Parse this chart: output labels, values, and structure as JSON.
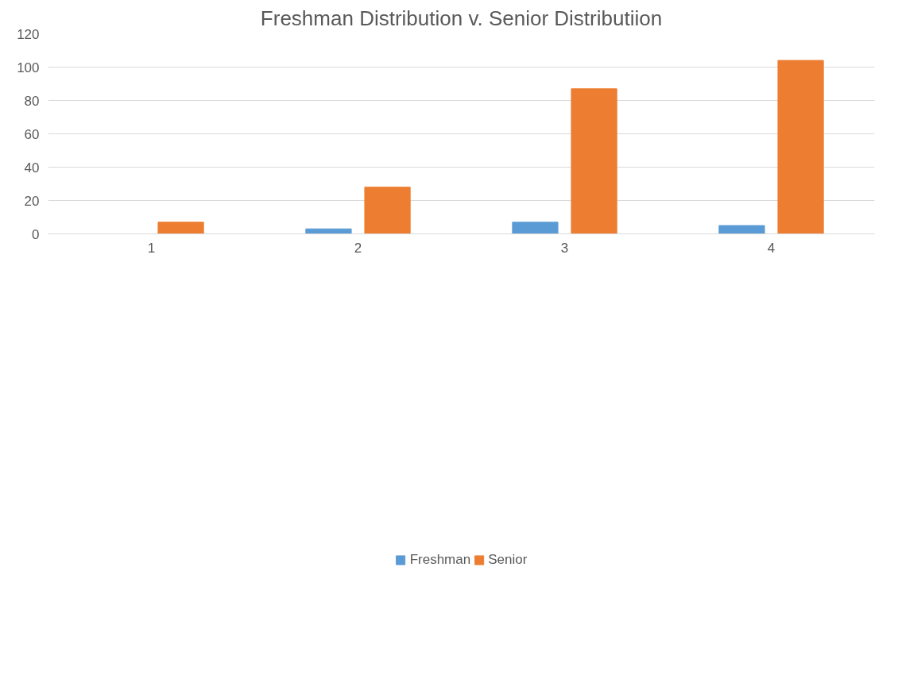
{
  "chart_data": {
    "type": "bar",
    "title": "Freshman Distribution v. Senior Distributiion",
    "categories": [
      "1",
      "2",
      "3",
      "4"
    ],
    "series": [
      {
        "name": "Freshman",
        "color": "#5b9bd5",
        "values": [
          0,
          3,
          7,
          5
        ]
      },
      {
        "name": "Senior",
        "color": "#ed7d31",
        "values": [
          7,
          28,
          87,
          104
        ]
      }
    ],
    "ylim": [
      0,
      120
    ],
    "yticks": [
      0,
      20,
      40,
      60,
      80,
      100,
      120
    ],
    "grid": "y",
    "legend": "bottom"
  }
}
